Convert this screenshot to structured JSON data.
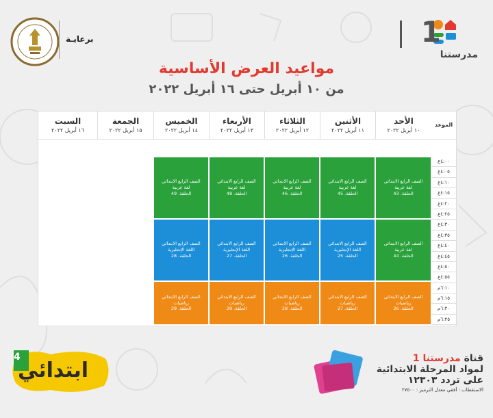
{
  "header": {
    "sponsor_label": "برعايـة",
    "brand_number": "1",
    "brand_name": "مدرستنا",
    "title": "مواعيد العرض الأساسية",
    "subtitle": "من ١٠ أبريل حتى ١٦ أبريل ٢٠٢٢"
  },
  "table": {
    "time_header": "الموعد",
    "days": [
      {
        "name": "الأحد",
        "date": "١٠ أبريل ٢٠٢٢"
      },
      {
        "name": "الأثنين",
        "date": "١١ أبريل ٢٠٢٢"
      },
      {
        "name": "الثلاثاء",
        "date": "١٢ أبريل ٢٠٢٢"
      },
      {
        "name": "الأربعاء",
        "date": "١٣ أبريل ٢٠٢٢"
      },
      {
        "name": "الخميس",
        "date": "١٤ أبريل ٢٠٢٢"
      },
      {
        "name": "الجمعة",
        "date": "١٥ أبريل ٢٠٢٢"
      },
      {
        "name": "السبت",
        "date": "١٦ أبريل ٢٠٢٢"
      }
    ],
    "times": [
      "٤:٠٠ع",
      "٤:٠٥ع",
      "٤:١٠ع",
      "٤:١٥ع",
      "٤:٢٠ع",
      "٤:٢٥ع",
      "٤:٣٠ع",
      "٤:٣٥ع",
      "٤:٤٠ع",
      "٤:٤٥ع",
      "٤:٥٠ع",
      "٤:٥٥ع",
      "٦:١٠م",
      "٦:١٥م",
      "٦:٢٠م",
      "٦:٢٥م"
    ],
    "rows": [
      {
        "color": "#2aa13b",
        "cells": [
          {
            "grade": "الصف الرابع الابتدائي",
            "subject": "لغة عربية",
            "episode": "الحلقة. 43"
          },
          {
            "grade": "الصف الرابع الابتدائي",
            "subject": "لغة عربية",
            "episode": "الحلقة. 45"
          },
          {
            "grade": "الصف الرابع الابتدائي",
            "subject": "لغة عربية",
            "episode": "الحلقة. 46"
          },
          {
            "grade": "الصف الرابع الابتدائي",
            "subject": "لغة عربية",
            "episode": "الحلقة. 48"
          },
          {
            "grade": "الصف الرابع الابتدائي",
            "subject": "لغة عربية",
            "episode": "الحلقة. 49"
          }
        ]
      },
      {
        "color": "#1c8fd8",
        "cells": [
          {
            "grade": "الصف الرابع الابتدائي",
            "subject": "لغة عربية",
            "episode": "الحلقة. 44"
          },
          {
            "grade": "الصف الرابع الابتدائي",
            "subject": "اللغة الإنجليزية",
            "episode": "الحلقة. 25"
          },
          {
            "grade": "الصف الرابع الابتدائي",
            "subject": "اللغة الإنجليزية",
            "episode": "الحلقة. 26"
          },
          {
            "grade": "الصف الرابع الابتدائي",
            "subject": "اللغة الإنجليزية",
            "episode": "الحلقة. 27"
          },
          {
            "grade": "الصف الرابع الابتدائي",
            "subject": "اللغة الإنجليزية",
            "episode": "الحلقة. 28"
          }
        ]
      },
      {
        "color": "#f08a17",
        "cells": [
          {
            "grade": "الصف الرابع الابتدائي",
            "subject": "رياضيات",
            "episode": "الحلقة. 26"
          },
          {
            "grade": "الصف الرابع الابتدائي",
            "subject": "رياضيات",
            "episode": "الحلقة. 27"
          },
          {
            "grade": "الصف الرابع الابتدائي",
            "subject": "رياضيات",
            "episode": "الحلقة. 28"
          },
          {
            "grade": "الصف الرابع الابتدائي",
            "subject": "رياضيات",
            "episode": "الحلقة. 29"
          },
          {
            "grade": "الصف الرابع الابتدائي",
            "subject": "رياضيات",
            "episode": "الحلقة. 29"
          }
        ]
      }
    ]
  },
  "footer": {
    "ibtidai_label": "ابتدائي",
    "ibtidai_grade": "4",
    "channel_line_prefix": "قناة ",
    "channel_line_accent": "مدرستنا",
    "channel_line_suffix": " 1",
    "channel_line2": "لمواد المرحلة الابتدائية",
    "channel_line3": "على تردد ١٢٣٠٣",
    "reception": "الاستقطاب : أفقي معدل الترميز : ٢٧٥٠٠"
  },
  "colors": {
    "title": "#e23a2e",
    "green": "#2aa13b",
    "blue": "#1c8fd8",
    "orange": "#f08a17"
  }
}
